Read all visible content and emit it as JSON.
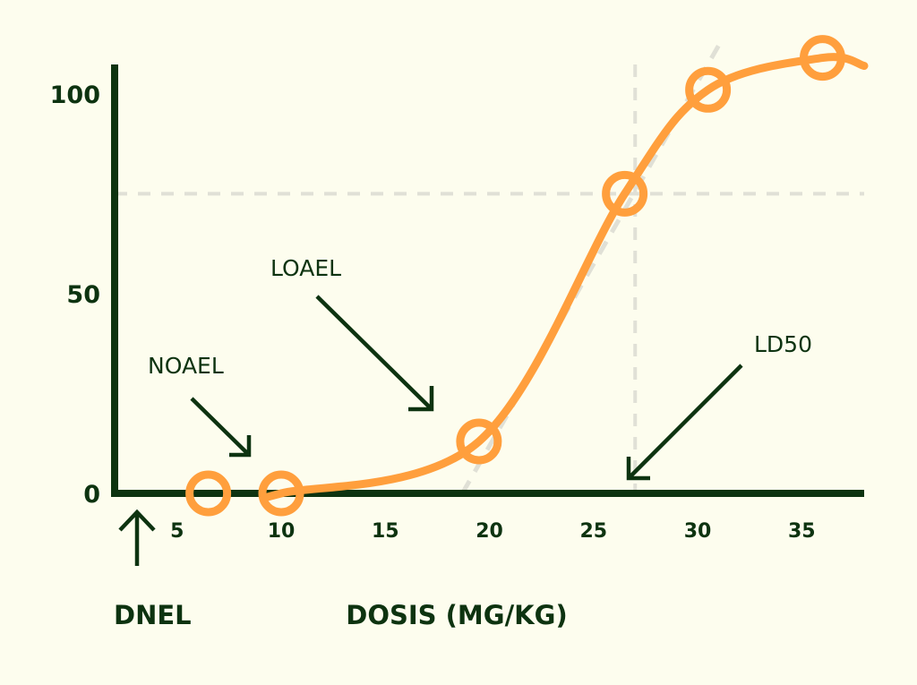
{
  "colors": {
    "background": "#fdfdee",
    "axis": "#0d3310",
    "curve": "#ff9f3d",
    "guides": "#e0e0d6"
  },
  "chart_data": {
    "type": "line",
    "xlabel": "DOSIS (MG/KG)",
    "ylabel": "",
    "xlim": [
      2,
      38
    ],
    "ylim": [
      0,
      106
    ],
    "x_ticks": [
      5,
      10,
      15,
      20,
      25,
      30,
      35
    ],
    "y_ticks": [
      0,
      50,
      100
    ],
    "grid": false,
    "series": [
      {
        "points": [
          {
            "x": 6.5,
            "y": 0
          },
          {
            "x": 10,
            "y": 0
          },
          {
            "x": 19.5,
            "y": 13
          },
          {
            "x": 26.5,
            "y": 75
          },
          {
            "x": 30.5,
            "y": 101
          },
          {
            "x": 36,
            "y": 109
          }
        ]
      }
    ],
    "reference_lines": {
      "vertical_x": 27,
      "horizontal_y": 75
    },
    "annotations": {
      "noael": "NOAEL",
      "loael": "LOAEL",
      "ld50": "LD50",
      "dnel": "DNEL"
    }
  }
}
